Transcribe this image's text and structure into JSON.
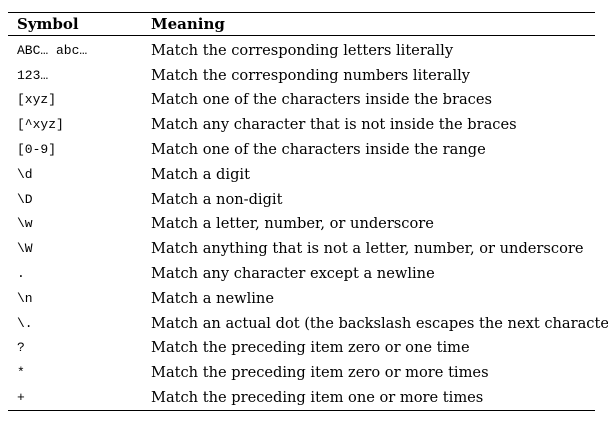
{
  "table": {
    "headers": [
      "Symbol",
      "Meaning"
    ],
    "rows": [
      {
        "symbol": "ABC… abc…",
        "meaning": "Match the corresponding letters literally"
      },
      {
        "symbol": "123…",
        "meaning": "Match the corresponding numbers literally"
      },
      {
        "symbol": "[xyz]",
        "meaning": "Match one of the characters inside the braces"
      },
      {
        "symbol": "[^xyz]",
        "meaning": "Match any character that is not inside the braces"
      },
      {
        "symbol": "[0-9]",
        "meaning": "Match one of the characters inside the range"
      },
      {
        "symbol": "\\d",
        "meaning": "Match a digit"
      },
      {
        "symbol": "\\D",
        "meaning": "Match a non-digit"
      },
      {
        "symbol": "\\w",
        "meaning": "Match a letter, number, or underscore"
      },
      {
        "symbol": "\\W",
        "meaning": "Match anything that is not a letter, number, or underscore"
      },
      {
        "symbol": ".",
        "meaning": "Match any character except a newline"
      },
      {
        "symbol": "\\n",
        "meaning": "Match a newline"
      },
      {
        "symbol": "\\.",
        "meaning": "Match an actual dot (the backslash escapes the next character)"
      },
      {
        "symbol": "?",
        "meaning": "Match the preceding item zero or one time"
      },
      {
        "symbol": "*",
        "meaning": "Match the preceding item zero or more times"
      },
      {
        "symbol": "+",
        "meaning": "Match the preceding item one or more times"
      }
    ]
  }
}
